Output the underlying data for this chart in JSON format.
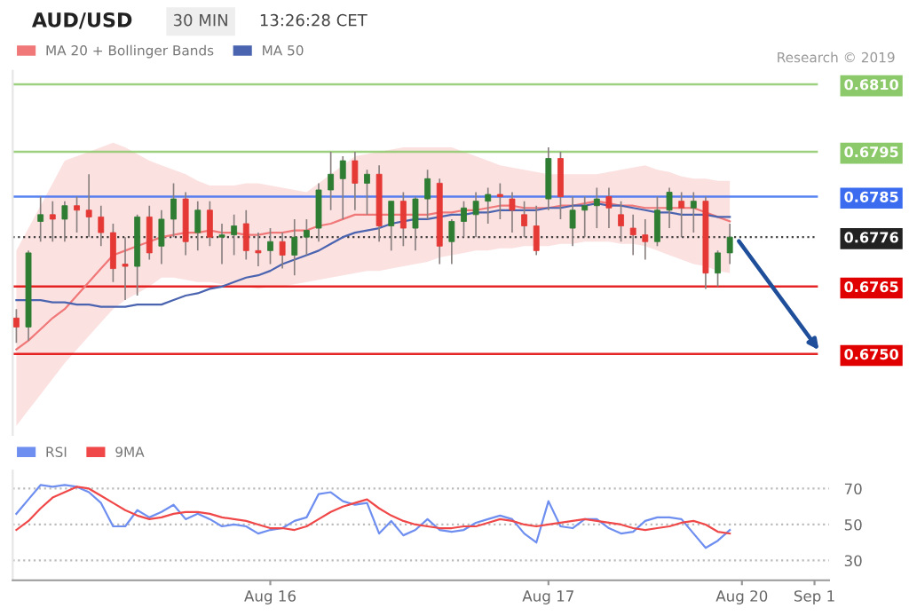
{
  "chart_data": [
    {
      "type": "candlestick",
      "title": "AUD/USD",
      "subtitle": "30 MIN",
      "annotations": [
        "13:26:28 CET",
        "Research © 2019"
      ],
      "categories": [
        null,
        null,
        null,
        null,
        null,
        null,
        null,
        null,
        null,
        null,
        null,
        null,
        null,
        null,
        null,
        null,
        null,
        null,
        null,
        null,
        null,
        null,
        null,
        null,
        null,
        null,
        null,
        null,
        null,
        null,
        null,
        null,
        null,
        null,
        null,
        null,
        null,
        null,
        null,
        null,
        null,
        null,
        null,
        null,
        null,
        null,
        null,
        null,
        null,
        null,
        null,
        null,
        null,
        null,
        null,
        null,
        null,
        null,
        null,
        null
      ],
      "ohlc": [
        [
          0.6758,
          0.676,
          0.67525,
          0.6756
        ],
        [
          0.6756,
          0.6773,
          0.6753,
          0.67725
        ],
        [
          0.67795,
          0.6785,
          0.6775,
          0.6781
        ],
        [
          0.6781,
          0.6784,
          0.6775,
          0.678
        ],
        [
          0.678,
          0.6784,
          0.6775,
          0.6783
        ],
        [
          0.6783,
          0.6785,
          0.6777,
          0.6782
        ],
        [
          0.6782,
          0.679,
          0.6776,
          0.67805
        ],
        [
          0.67805,
          0.6783,
          0.6774,
          0.6777
        ],
        [
          0.6777,
          0.6779,
          0.6766,
          0.6769
        ],
        [
          0.677,
          0.6776,
          0.6762,
          0.67695
        ],
        [
          0.67695,
          0.6781,
          0.6763,
          0.67805
        ],
        [
          0.67805,
          0.6783,
          0.6771,
          0.67725
        ],
        [
          0.6774,
          0.6782,
          0.677,
          0.678
        ],
        [
          0.678,
          0.6788,
          0.6776,
          0.67845
        ],
        [
          0.67845,
          0.6786,
          0.6772,
          0.6775
        ],
        [
          0.6777,
          0.6784,
          0.6773,
          0.6782
        ],
        [
          0.6782,
          0.6784,
          0.6774,
          0.6776
        ],
        [
          0.6776,
          0.6779,
          0.677,
          0.67765
        ],
        [
          0.67765,
          0.6781,
          0.6772,
          0.67785
        ],
        [
          0.6779,
          0.6782,
          0.6771,
          0.6773
        ],
        [
          0.6773,
          0.6777,
          0.67695,
          0.67725
        ],
        [
          0.6773,
          0.6778,
          0.677,
          0.6775
        ],
        [
          0.6775,
          0.6777,
          0.6769,
          0.6772
        ],
        [
          0.6772,
          0.678,
          0.67675,
          0.6776
        ],
        [
          0.6776,
          0.678,
          0.6772,
          0.67775
        ],
        [
          0.6778,
          0.6788,
          0.6775,
          0.67865
        ],
        [
          0.67865,
          0.6795,
          0.6782,
          0.679
        ],
        [
          0.6789,
          0.6794,
          0.678,
          0.6793
        ],
        [
          0.6793,
          0.6795,
          0.6782,
          0.6788
        ],
        [
          0.6788,
          0.6791,
          0.6781,
          0.679
        ],
        [
          0.679,
          0.6792,
          0.6775,
          0.67785
        ],
        [
          0.67785,
          0.6784,
          0.6773,
          0.6784
        ],
        [
          0.6784,
          0.6786,
          0.6774,
          0.6778
        ],
        [
          0.6778,
          0.6785,
          0.6773,
          0.67845
        ],
        [
          0.67845,
          0.6791,
          0.678,
          0.6789
        ],
        [
          0.6788,
          0.6789,
          0.677,
          0.6774
        ],
        [
          0.6775,
          0.678,
          0.677,
          0.67795
        ],
        [
          0.67795,
          0.6784,
          0.6776,
          0.67825
        ],
        [
          0.6781,
          0.6786,
          0.6776,
          0.6784
        ],
        [
          0.6784,
          0.6787,
          0.6779,
          0.67855
        ],
        [
          0.67855,
          0.6788,
          0.678,
          0.6785
        ],
        [
          0.67845,
          0.6786,
          0.6777,
          0.6782
        ],
        [
          0.6781,
          0.6784,
          0.6776,
          0.67785
        ],
        [
          0.67785,
          0.6783,
          0.6772,
          0.6773
        ],
        [
          0.67845,
          0.6796,
          0.6782,
          0.67935
        ],
        [
          0.67935,
          0.6795,
          0.678,
          0.6785
        ],
        [
          0.6778,
          0.6785,
          0.6774,
          0.6782
        ],
        [
          0.6782,
          0.6785,
          0.6776,
          0.6783
        ],
        [
          0.6783,
          0.6787,
          0.6778,
          0.67845
        ],
        [
          0.6785,
          0.6787,
          0.6778,
          0.67825
        ],
        [
          0.6781,
          0.6784,
          0.6775,
          0.67785
        ],
        [
          0.6778,
          0.6781,
          0.6772,
          0.67765
        ],
        [
          0.67765,
          0.678,
          0.6771,
          0.6775
        ],
        [
          0.6775,
          0.6785,
          0.6774,
          0.6782
        ],
        [
          0.6782,
          0.6787,
          0.6778,
          0.6786
        ],
        [
          0.6784,
          0.6786,
          0.6776,
          0.67825
        ],
        [
          0.67825,
          0.6786,
          0.6777,
          0.6784
        ],
        [
          0.6784,
          0.6785,
          0.67645,
          0.6768
        ],
        [
          0.6768,
          0.6773,
          0.6765,
          0.67725
        ],
        [
          0.67725,
          0.6779,
          0.677,
          0.6776
        ]
      ],
      "colors": [
        "#e53935",
        "#2e7d32",
        "#2e7d32",
        "#e53935",
        "#2e7d32",
        "#e53935",
        "#e53935",
        "#e53935",
        "#e53935",
        "#e53935",
        "#2e7d32",
        "#e53935",
        "#2e7d32",
        "#2e7d32",
        "#e53935",
        "#2e7d32",
        "#e53935",
        "#2e7d32",
        "#2e7d32",
        "#e53935",
        "#e53935",
        "#2e7d32",
        "#e53935",
        "#2e7d32",
        "#2e7d32",
        "#2e7d32",
        "#2e7d32",
        "#2e7d32",
        "#e53935",
        "#2e7d32",
        "#e53935",
        "#2e7d32",
        "#e53935",
        "#2e7d32",
        "#2e7d32",
        "#e53935",
        "#2e7d32",
        "#2e7d32",
        "#2e7d32",
        "#2e7d32",
        "#e53935",
        "#e53935",
        "#e53935",
        "#e53935",
        "#2e7d32",
        "#e53935",
        "#2e7d32",
        "#2e7d32",
        "#2e7d32",
        "#e53935",
        "#e53935",
        "#e53935",
        "#e53935",
        "#2e7d32",
        "#2e7d32",
        "#e53935",
        "#2e7d32",
        "#e53935",
        "#2e7d32",
        "#2e7d32"
      ],
      "series": [
        {
          "name": "MA 20 + Bollinger Bands",
          "type": "line",
          "color": "#f07878",
          "values": [
            0.6751,
            0.6753,
            0.67555,
            0.6758,
            0.676,
            0.6763,
            0.6766,
            0.6769,
            0.6772,
            0.6773,
            0.6774,
            0.6775,
            0.6776,
            0.67765,
            0.6777,
            0.6777,
            0.67775,
            0.6777,
            0.6777,
            0.67765,
            0.67765,
            0.6777,
            0.6777,
            0.67775,
            0.67775,
            0.67785,
            0.6779,
            0.678,
            0.6781,
            0.6781,
            0.6781,
            0.6781,
            0.6781,
            0.6781,
            0.6781,
            0.67815,
            0.67815,
            0.6782,
            0.6782,
            0.67825,
            0.6783,
            0.6783,
            0.67825,
            0.67825,
            0.67825,
            0.6783,
            0.6783,
            0.67835,
            0.6784,
            0.67835,
            0.6783,
            0.6783,
            0.67825,
            0.67825,
            0.67825,
            0.67825,
            0.67825,
            0.67815,
            0.67805,
            0.67795
          ],
          "lower": [
            0.6734,
            0.67375,
            0.6741,
            0.67445,
            0.6748,
            0.6751,
            0.6754,
            0.6757,
            0.676,
            0.6762,
            0.67635,
            0.6765,
            0.6767,
            0.6767,
            0.67665,
            0.6766,
            0.6766,
            0.67655,
            0.6765,
            0.6765,
            0.67645,
            0.6765,
            0.6765,
            0.67655,
            0.6766,
            0.67665,
            0.6767,
            0.67675,
            0.6768,
            0.67685,
            0.67685,
            0.6769,
            0.67695,
            0.677,
            0.67705,
            0.67715,
            0.6772,
            0.67725,
            0.6773,
            0.6773,
            0.67735,
            0.67735,
            0.6774,
            0.6774,
            0.6774,
            0.67745,
            0.67745,
            0.6775,
            0.6775,
            0.6775,
            0.67745,
            0.67745,
            0.6774,
            0.6773,
            0.6772,
            0.6771,
            0.677,
            0.67695,
            0.67685,
            0.6768
          ],
          "upper": [
            0.6773,
            0.6778,
            0.6783,
            0.6788,
            0.6793,
            0.6794,
            0.6795,
            0.6796,
            0.6797,
            0.6796,
            0.67945,
            0.6793,
            0.6792,
            0.6791,
            0.679,
            0.67885,
            0.67875,
            0.67875,
            0.67875,
            0.6788,
            0.6788,
            0.67875,
            0.6787,
            0.67865,
            0.6786,
            0.6788,
            0.679,
            0.6792,
            0.6794,
            0.67945,
            0.6795,
            0.67955,
            0.6796,
            0.6796,
            0.6796,
            0.6796,
            0.6796,
            0.6795,
            0.6794,
            0.6793,
            0.6792,
            0.67915,
            0.6791,
            0.67905,
            0.679,
            0.679,
            0.679,
            0.679,
            0.679,
            0.67905,
            0.6791,
            0.67915,
            0.6792,
            0.6791,
            0.67905,
            0.67895,
            0.6789,
            0.6789,
            0.67885,
            0.67885
          ]
        },
        {
          "name": "MA 50",
          "type": "line",
          "color": "#4a64b0",
          "values": [
            0.6762,
            0.6762,
            0.6762,
            0.67615,
            0.67615,
            0.6761,
            0.6761,
            0.67605,
            0.67605,
            0.67605,
            0.6761,
            0.6761,
            0.6761,
            0.6762,
            0.6763,
            0.67635,
            0.67645,
            0.6765,
            0.6766,
            0.6767,
            0.67675,
            0.67685,
            0.677,
            0.6771,
            0.6772,
            0.6773,
            0.67745,
            0.6776,
            0.6777,
            0.67775,
            0.6778,
            0.6779,
            0.67795,
            0.678,
            0.678,
            0.67805,
            0.6781,
            0.6781,
            0.67815,
            0.67815,
            0.6782,
            0.6782,
            0.6782,
            0.6782,
            0.67825,
            0.67825,
            0.6783,
            0.6783,
            0.67835,
            0.6783,
            0.6783,
            0.67825,
            0.6782,
            0.67815,
            0.67815,
            0.6781,
            0.6781,
            0.6781,
            0.67805,
            0.67805
          ]
        }
      ],
      "ref_lines": [
        {
          "axis": "y",
          "value": 0.681,
          "color": "#8cc96a"
        },
        {
          "axis": "y",
          "value": 0.6795,
          "color": "#8cc96a"
        },
        {
          "axis": "y",
          "value": 0.6785,
          "color": "#3b6cf0"
        },
        {
          "axis": "y",
          "value": 0.6776,
          "color": "#222222",
          "line_style": "dotted"
        },
        {
          "axis": "y",
          "value": 0.6765,
          "color": "#e00000"
        },
        {
          "axis": "y",
          "value": 0.675,
          "color": "#e00000"
        }
      ],
      "ylim": [
        0.6732,
        0.6813
      ],
      "yticks": [
        {
          "value": 0.675,
          "label": "0.6750"
        },
        {
          "value": 0.6765,
          "label": "0.6765"
        },
        {
          "value": 0.6776,
          "label": "0.6776"
        },
        {
          "value": 0.6785,
          "label": "0.6785"
        },
        {
          "value": 0.6795,
          "label": "0.6795"
        },
        {
          "value": 0.681,
          "label": "0.6810"
        }
      ],
      "tick_labels": "y",
      "legend": "top left",
      "grid": false
    },
    {
      "type": "line",
      "categories": [
        null,
        null,
        null,
        null,
        null,
        null,
        null,
        null,
        null,
        null,
        null,
        null,
        null,
        null,
        null,
        null,
        null,
        null,
        null,
        null,
        null,
        "Aug 16",
        null,
        null,
        null,
        null,
        null,
        null,
        null,
        null,
        null,
        null,
        null,
        null,
        null,
        null,
        null,
        null,
        null,
        null,
        null,
        null,
        null,
        null,
        "Aug 17",
        null,
        null,
        null,
        null,
        null,
        null,
        null,
        null,
        null,
        null,
        null,
        null,
        null,
        null,
        null,
        "Aug 20",
        null,
        null,
        null,
        null,
        null,
        "Sep 1"
      ],
      "series": [
        {
          "name": "RSI",
          "color": "#6f8ff0",
          "values": [
            56,
            64,
            72,
            71,
            72,
            71,
            68,
            62,
            49,
            49,
            58,
            54,
            57,
            61,
            53,
            56,
            53,
            49,
            50,
            49,
            45,
            47,
            48,
            52,
            54,
            67,
            68,
            63,
            61,
            62,
            45,
            52,
            44,
            47,
            53,
            47,
            46,
            47,
            51,
            53,
            55,
            53,
            45,
            40,
            63,
            49,
            48,
            53,
            53,
            48,
            45,
            46,
            52,
            54,
            54,
            53,
            45,
            37,
            41,
            47,
            null,
            null,
            null,
            null,
            null,
            null,
            null
          ]
        },
        {
          "name": "9MA",
          "color": "#f04848",
          "values": [
            47,
            52,
            59,
            65,
            68,
            71,
            70,
            66,
            62,
            58,
            55,
            53,
            54,
            56,
            57,
            57,
            56,
            54,
            53,
            52,
            50,
            48,
            48,
            47,
            49,
            53,
            57,
            60,
            62,
            64,
            59,
            55,
            52,
            50,
            49,
            48,
            48,
            49,
            49,
            51,
            53,
            52,
            50,
            49,
            50,
            51,
            52,
            53,
            52,
            51,
            50,
            48,
            47,
            48,
            49,
            51,
            52,
            50,
            46,
            45,
            null,
            null,
            null,
            null,
            null,
            null,
            null
          ]
        }
      ],
      "ylim": [
        19,
        80
      ],
      "yticks": [
        30,
        50,
        70
      ],
      "grid": "y",
      "legend": "top left",
      "line_style": "solid",
      "marker": "none"
    }
  ]
}
